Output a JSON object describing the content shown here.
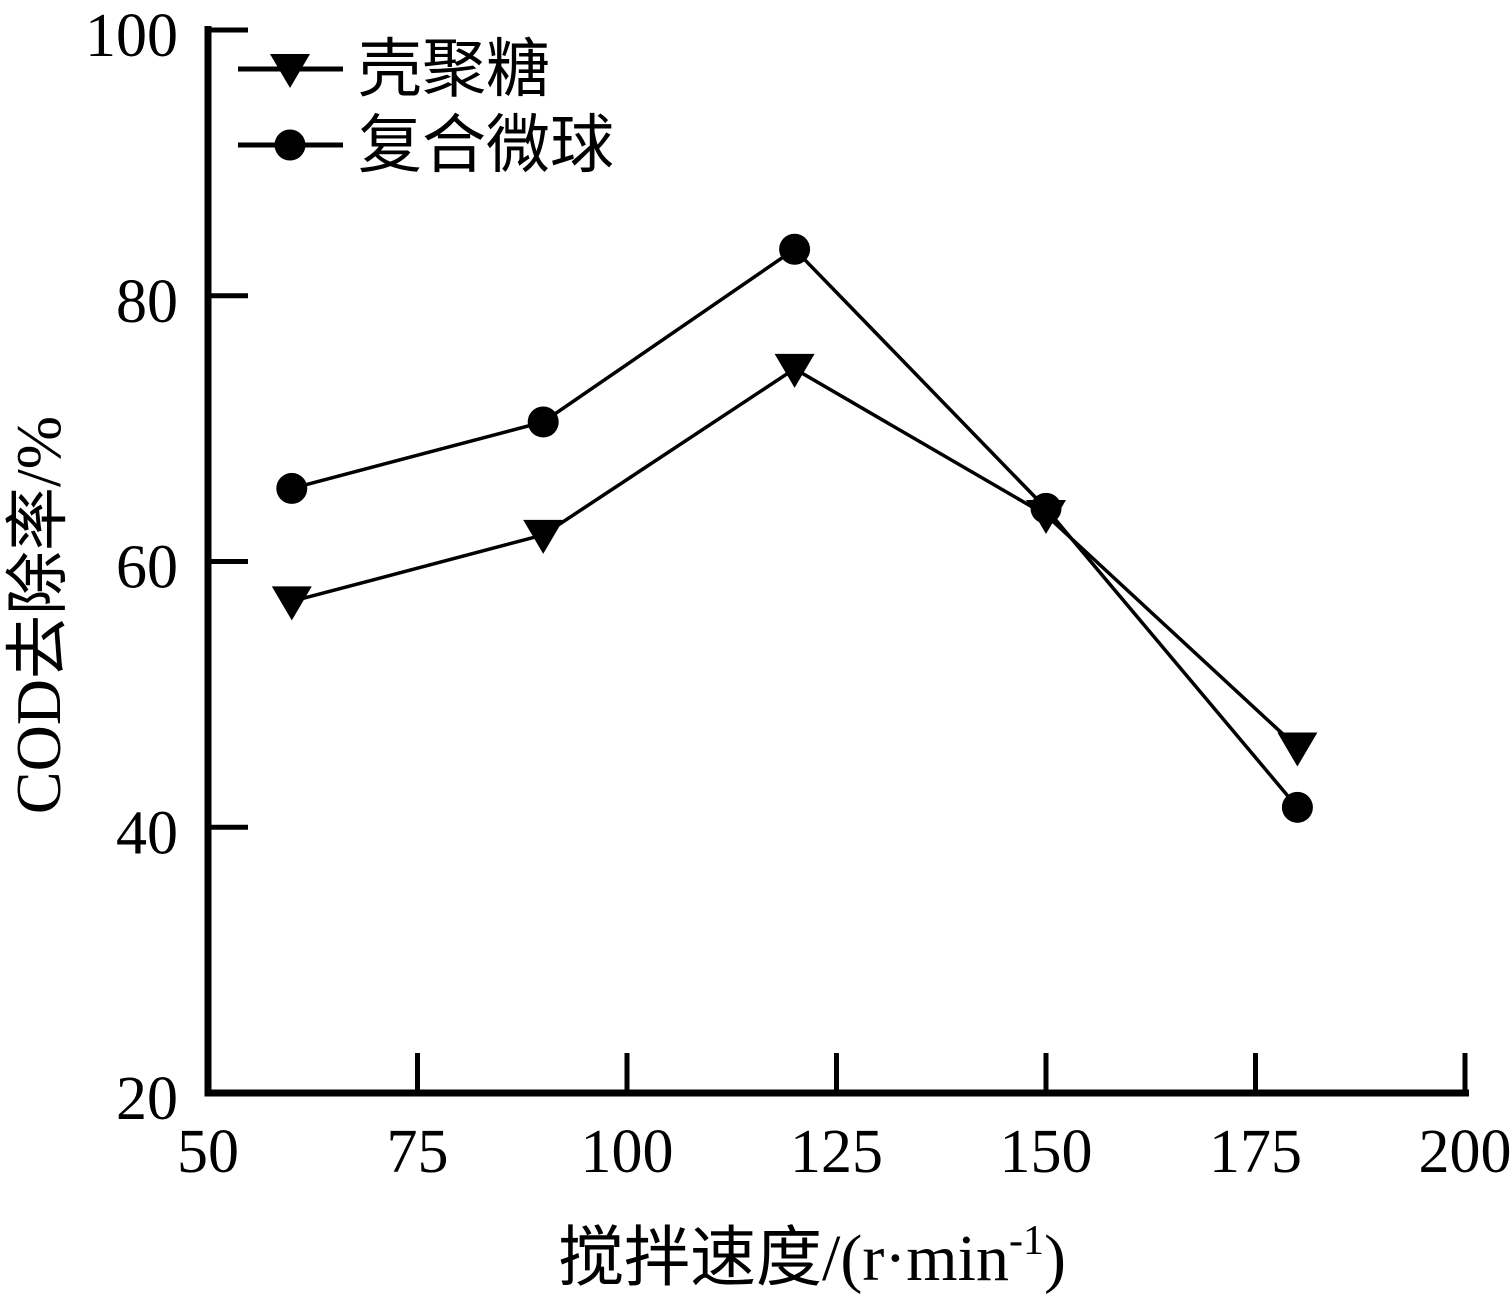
{
  "figure": {
    "background": "#ffffff",
    "ink": "#000000"
  },
  "chart_data": {
    "type": "line",
    "x": [
      60,
      90,
      120,
      150,
      180
    ],
    "series": [
      {
        "name": "壳聚糖",
        "marker": "triangle-down",
        "values": [
          57,
          62,
          74.5,
          63.5,
          46
        ]
      },
      {
        "name": "复合微球",
        "marker": "circle",
        "values": [
          65.5,
          70.5,
          83.5,
          64,
          41.5
        ]
      }
    ],
    "xlabel": {
      "prefix": "搅拌速度/(r·min",
      "sup": "-1",
      "suffix": ")"
    },
    "ylabel": "COD去除率/%",
    "xlim": [
      50,
      200
    ],
    "ylim": [
      20,
      100
    ],
    "x_ticks": [
      50,
      75,
      100,
      125,
      150,
      175,
      200
    ],
    "y_ticks": [
      20,
      40,
      60,
      80,
      100
    ],
    "grid": false,
    "legend_position": "top-left",
    "frame": "L-axes-only",
    "tick_direction": "in"
  }
}
